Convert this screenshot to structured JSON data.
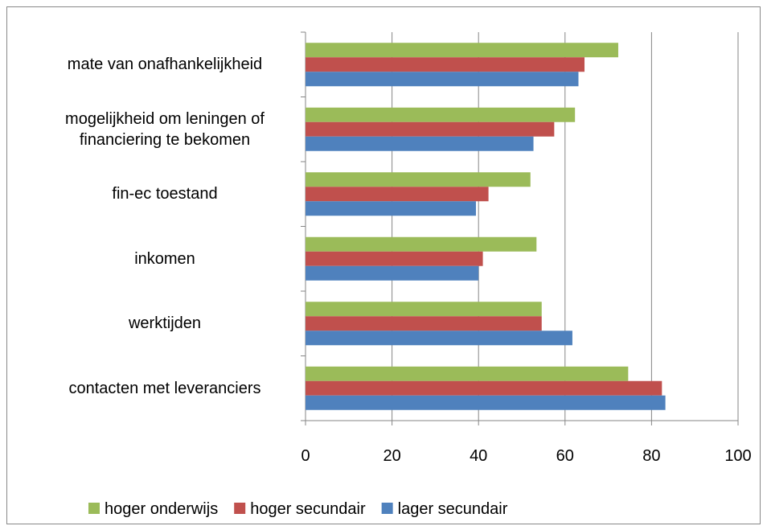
{
  "chart_data": {
    "type": "bar",
    "orientation": "horizontal",
    "categories": [
      "mate van onafhankelijkheid",
      "mogelijkheid om leningen of financiering te bekomen",
      "fin-ec toestand",
      "inkomen",
      "werktijden",
      "contacten met leveranciers"
    ],
    "series": [
      {
        "name": "hoger onderwijs",
        "color": "#9bbb59",
        "values": [
          72.3,
          62.3,
          52,
          53.4,
          54.6,
          74.6
        ]
      },
      {
        "name": "hoger secundair",
        "color": "#c0504d",
        "values": [
          64.5,
          57.5,
          42.3,
          41,
          54.6,
          82.4
        ]
      },
      {
        "name": "lager secundair",
        "color": "#4f81bd",
        "values": [
          63.1,
          52.7,
          39.4,
          40,
          61.7,
          83.2
        ]
      }
    ],
    "xlim": [
      0,
      100
    ],
    "xticks": [
      0,
      20,
      40,
      60,
      80,
      100
    ],
    "grid": true,
    "legend": "bottom"
  }
}
